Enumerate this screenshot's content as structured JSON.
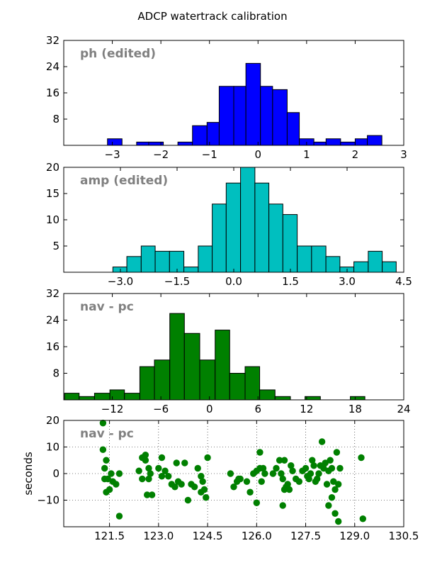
{
  "figure_title": "ADCP watertrack calibration",
  "chart_data": [
    {
      "type": "bar",
      "label": "ph (edited)",
      "color": "#0000ff",
      "xlim": [
        -4,
        3
      ],
      "ylim": [
        0,
        32
      ],
      "xticks": [
        -3,
        -2,
        -1,
        0,
        1,
        2,
        3
      ],
      "xtick_labels": [
        "−3",
        "−2",
        "−1",
        "0",
        "1",
        "2",
        "3"
      ],
      "yticks": [
        8,
        16,
        24,
        32
      ],
      "ytick_labels": [
        "8",
        "16",
        "24",
        "32"
      ],
      "bins": [
        [
          -3.1,
          -2.8,
          2
        ],
        [
          -2.5,
          -2.25,
          1
        ],
        [
          -2.25,
          -1.95,
          1
        ],
        [
          -1.65,
          -1.35,
          1
        ],
        [
          -1.35,
          -1.05,
          6
        ],
        [
          -1.05,
          -0.8,
          7
        ],
        [
          -0.8,
          -0.5,
          18
        ],
        [
          -0.5,
          -0.25,
          18
        ],
        [
          -0.25,
          0.05,
          25
        ],
        [
          0.05,
          0.3,
          18
        ],
        [
          0.3,
          0.6,
          17
        ],
        [
          0.6,
          0.85,
          10
        ],
        [
          0.85,
          1.15,
          2
        ],
        [
          1.15,
          1.4,
          1
        ],
        [
          1.4,
          1.7,
          2
        ],
        [
          1.7,
          2.0,
          1
        ],
        [
          2.0,
          2.25,
          2
        ],
        [
          2.25,
          2.55,
          3
        ]
      ]
    },
    {
      "type": "bar",
      "label": "amp (edited)",
      "color": "#00bfbf",
      "xlim": [
        -4.5,
        4.5
      ],
      "ylim": [
        0,
        20
      ],
      "xticks": [
        -3.0,
        -1.5,
        0.0,
        1.5,
        3.0,
        4.5
      ],
      "xtick_labels": [
        "−3.0",
        "−1.5",
        "0.0",
        "1.5",
        "3.0",
        "4.5"
      ],
      "yticks": [
        5,
        10,
        15,
        20
      ],
      "ytick_labels": [
        "5",
        "10",
        "15",
        "20"
      ],
      "bins": [
        [
          -3.2,
          -2.83,
          1
        ],
        [
          -2.83,
          -2.45,
          3
        ],
        [
          -2.45,
          -2.08,
          5
        ],
        [
          -2.08,
          -1.7,
          4
        ],
        [
          -1.7,
          -1.32,
          4
        ],
        [
          -1.32,
          -0.94,
          1
        ],
        [
          -0.94,
          -0.57,
          5
        ],
        [
          -0.57,
          -0.2,
          13
        ],
        [
          -0.2,
          0.18,
          17
        ],
        [
          0.18,
          0.56,
          20
        ],
        [
          0.56,
          0.93,
          17
        ],
        [
          0.93,
          1.3,
          13
        ],
        [
          1.3,
          1.68,
          11
        ],
        [
          1.68,
          2.06,
          5
        ],
        [
          2.06,
          2.44,
          5
        ],
        [
          2.44,
          2.81,
          3
        ],
        [
          2.81,
          3.18,
          1
        ],
        [
          3.18,
          3.56,
          2
        ],
        [
          3.56,
          3.93,
          4
        ],
        [
          3.93,
          4.3,
          2
        ]
      ]
    },
    {
      "type": "bar",
      "label": "nav - pc",
      "color": "#008000",
      "xlim": [
        -18,
        24
      ],
      "ylim": [
        0,
        32
      ],
      "xticks": [
        -12,
        -6,
        0,
        6,
        12,
        18,
        24
      ],
      "xtick_labels": [
        "−12",
        "−6",
        "0",
        "6",
        "12",
        "18",
        "24"
      ],
      "yticks": [
        8,
        16,
        24,
        32
      ],
      "ytick_labels": [
        "8",
        "16",
        "24",
        "32"
      ],
      "bins": [
        [
          -17.9,
          -16.1,
          2
        ],
        [
          -16.1,
          -14.2,
          1
        ],
        [
          -14.2,
          -12.3,
          2
        ],
        [
          -12.3,
          -10.5,
          3
        ],
        [
          -10.5,
          -8.6,
          2
        ],
        [
          -8.6,
          -6.8,
          10
        ],
        [
          -6.8,
          -4.9,
          12
        ],
        [
          -4.9,
          -3.1,
          26
        ],
        [
          -3.1,
          -1.2,
          20
        ],
        [
          -1.2,
          0.7,
          12
        ],
        [
          0.7,
          2.5,
          21
        ],
        [
          2.5,
          4.4,
          8
        ],
        [
          4.4,
          6.2,
          10
        ],
        [
          6.2,
          8.1,
          3
        ],
        [
          8.1,
          10.0,
          1
        ],
        [
          10.0,
          11.8,
          0
        ],
        [
          11.8,
          13.7,
          1
        ],
        [
          13.7,
          15.5,
          0
        ],
        [
          15.5,
          17.4,
          0
        ],
        [
          17.4,
          19.2,
          1
        ]
      ]
    },
    {
      "type": "scatter",
      "label": "nav - pc",
      "color": "#008000",
      "ylabel": "seconds",
      "xlim": [
        120.1,
        130.5
      ],
      "ylim": [
        -20,
        20
      ],
      "xticks": [
        121.5,
        123.0,
        124.5,
        126.0,
        127.5,
        129.0,
        130.5
      ],
      "xtick_labels": [
        "121.5",
        "123.0",
        "124.5",
        "126.0",
        "127.5",
        "129.0",
        "130.5"
      ],
      "yticks": [
        -10,
        0,
        10,
        20
      ],
      "ytick_labels": [
        "−10",
        "0",
        "10",
        "20"
      ],
      "grid": true,
      "points": [
        [
          121.3,
          19
        ],
        [
          121.3,
          9
        ],
        [
          121.35,
          2
        ],
        [
          121.4,
          5
        ],
        [
          121.35,
          -2
        ],
        [
          121.45,
          -2
        ],
        [
          121.4,
          -7
        ],
        [
          121.5,
          -6
        ],
        [
          121.6,
          -3
        ],
        [
          121.55,
          0
        ],
        [
          121.8,
          0
        ],
        [
          121.7,
          -4
        ],
        [
          121.8,
          -16
        ],
        [
          122.4,
          1
        ],
        [
          122.5,
          6
        ],
        [
          122.6,
          7
        ],
        [
          122.6,
          5
        ],
        [
          122.7,
          2
        ],
        [
          122.75,
          0
        ],
        [
          122.7,
          -2
        ],
        [
          122.5,
          -2
        ],
        [
          122.65,
          -8
        ],
        [
          122.8,
          -8
        ],
        [
          123.0,
          2
        ],
        [
          123.1,
          -1
        ],
        [
          123.2,
          1
        ],
        [
          123.1,
          6
        ],
        [
          123.3,
          -1
        ],
        [
          123.4,
          -4
        ],
        [
          123.5,
          -5
        ],
        [
          123.6,
          -3
        ],
        [
          123.55,
          4
        ],
        [
          123.7,
          -4
        ],
        [
          123.8,
          4
        ],
        [
          123.9,
          -10
        ],
        [
          124.0,
          -4
        ],
        [
          124.1,
          -5
        ],
        [
          124.2,
          2
        ],
        [
          124.3,
          -7
        ],
        [
          124.35,
          -3
        ],
        [
          124.4,
          -6
        ],
        [
          124.45,
          -9
        ],
        [
          124.5,
          6
        ],
        [
          124.3,
          -1
        ],
        [
          125.2,
          0
        ],
        [
          125.3,
          -5
        ],
        [
          125.4,
          -3
        ],
        [
          125.45,
          -2
        ],
        [
          125.5,
          -2
        ],
        [
          125.7,
          -3
        ],
        [
          125.8,
          -7
        ],
        [
          125.9,
          0
        ],
        [
          126.0,
          -11
        ],
        [
          126.0,
          1
        ],
        [
          126.1,
          2
        ],
        [
          126.15,
          -3
        ],
        [
          126.2,
          2
        ],
        [
          126.25,
          0
        ],
        [
          126.1,
          8
        ],
        [
          126.5,
          0
        ],
        [
          126.6,
          2
        ],
        [
          126.7,
          5
        ],
        [
          126.75,
          0
        ],
        [
          126.8,
          -2
        ],
        [
          126.85,
          -6
        ],
        [
          126.9,
          -5
        ],
        [
          126.95,
          -4
        ],
        [
          127.0,
          -6
        ],
        [
          127.05,
          3
        ],
        [
          127.1,
          1
        ],
        [
          126.85,
          5
        ],
        [
          126.8,
          -12
        ],
        [
          127.2,
          -2
        ],
        [
          127.3,
          -3
        ],
        [
          127.4,
          1
        ],
        [
          127.5,
          2
        ],
        [
          127.55,
          -1
        ],
        [
          127.6,
          -2
        ],
        [
          127.65,
          0
        ],
        [
          127.7,
          5
        ],
        [
          127.75,
          3
        ],
        [
          127.8,
          -3
        ],
        [
          127.85,
          -2
        ],
        [
          127.9,
          0
        ],
        [
          127.95,
          3
        ],
        [
          128.0,
          12
        ],
        [
          128.05,
          2
        ],
        [
          128.1,
          4
        ],
        [
          128.15,
          -4
        ],
        [
          128.2,
          1
        ],
        [
          128.25,
          5
        ],
        [
          128.3,
          2
        ],
        [
          128.35,
          -3
        ],
        [
          128.4,
          -6
        ],
        [
          128.45,
          8
        ],
        [
          128.5,
          -4
        ],
        [
          128.55,
          2
        ],
        [
          128.4,
          -15
        ],
        [
          128.5,
          -18
        ],
        [
          128.3,
          -9
        ],
        [
          128.2,
          -12
        ],
        [
          129.2,
          6
        ],
        [
          129.25,
          -17
        ]
      ]
    }
  ]
}
